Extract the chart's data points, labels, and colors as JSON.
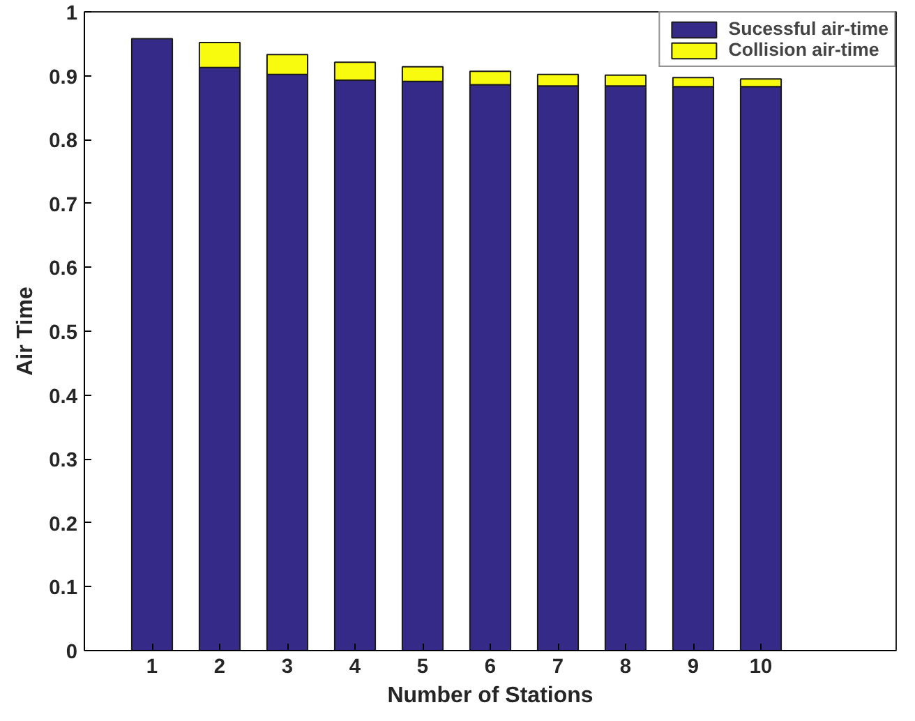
{
  "chart_data": {
    "type": "bar",
    "stacked": true,
    "xlabel": "Number of Stations",
    "ylabel": "Air Time",
    "x": [
      1,
      2,
      3,
      4,
      5,
      6,
      7,
      8,
      9,
      10
    ],
    "xlim": [
      0,
      12
    ],
    "xticks": [
      1,
      2,
      3,
      4,
      5,
      6,
      7,
      8,
      9,
      10
    ],
    "ylim": [
      0,
      1
    ],
    "yticks": [
      0,
      0.1,
      0.2,
      0.3,
      0.4,
      0.5,
      0.6,
      0.7,
      0.8,
      0.9,
      1
    ],
    "series": [
      {
        "name": "Sucessful air-time",
        "color": "#352a87",
        "values": [
          0.958,
          0.913,
          0.902,
          0.893,
          0.891,
          0.886,
          0.884,
          0.884,
          0.883,
          0.883
        ]
      },
      {
        "name": "Collision air-time",
        "color": "#f9fb0e",
        "values": [
          null,
          0.039,
          0.031,
          0.028,
          0.023,
          0.021,
          0.018,
          0.017,
          0.014,
          0.012
        ]
      }
    ],
    "grid": false,
    "legend": "top right"
  }
}
